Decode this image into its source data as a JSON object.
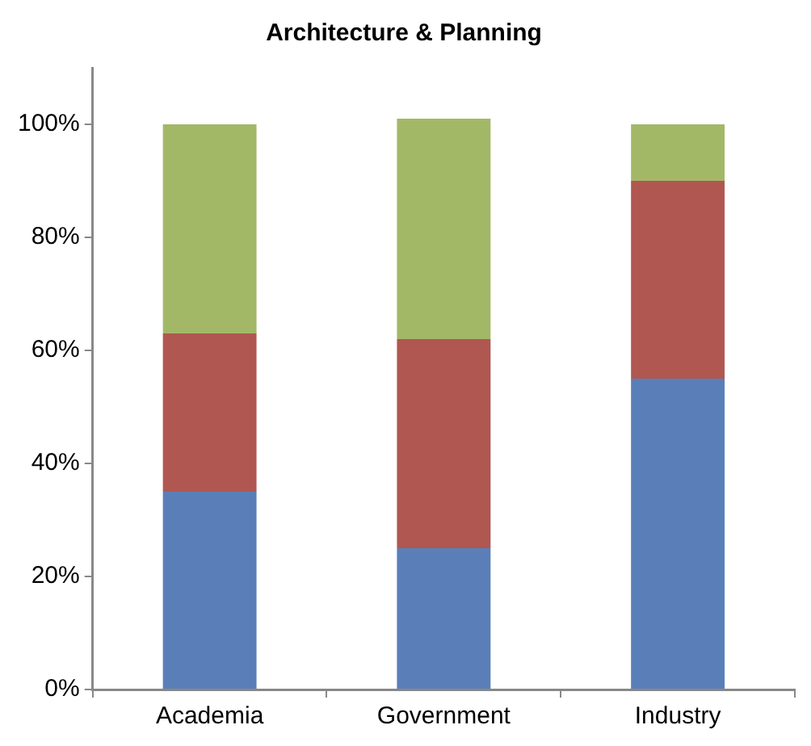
{
  "chart_data": {
    "type": "bar",
    "title": "Architecture & Planning",
    "stacked": true,
    "categories": [
      "Academia",
      "Government",
      "Industry"
    ],
    "series": [
      {
        "color": "#5a7fb8",
        "values": [
          35,
          25,
          55
        ]
      },
      {
        "color": "#b05751",
        "values": [
          28,
          37,
          35
        ]
      },
      {
        "color": "#a3b867",
        "values": [
          37,
          39,
          10
        ]
      }
    ],
    "ylim": [
      0,
      110
    ],
    "yticks": [
      {
        "value": 0,
        "label": "0%"
      },
      {
        "value": 20,
        "label": "20%"
      },
      {
        "value": 40,
        "label": "40%"
      },
      {
        "value": 60,
        "label": "60%"
      },
      {
        "value": 80,
        "label": "80%"
      },
      {
        "value": 100,
        "label": "100%"
      }
    ],
    "grid": false,
    "legend": false
  }
}
